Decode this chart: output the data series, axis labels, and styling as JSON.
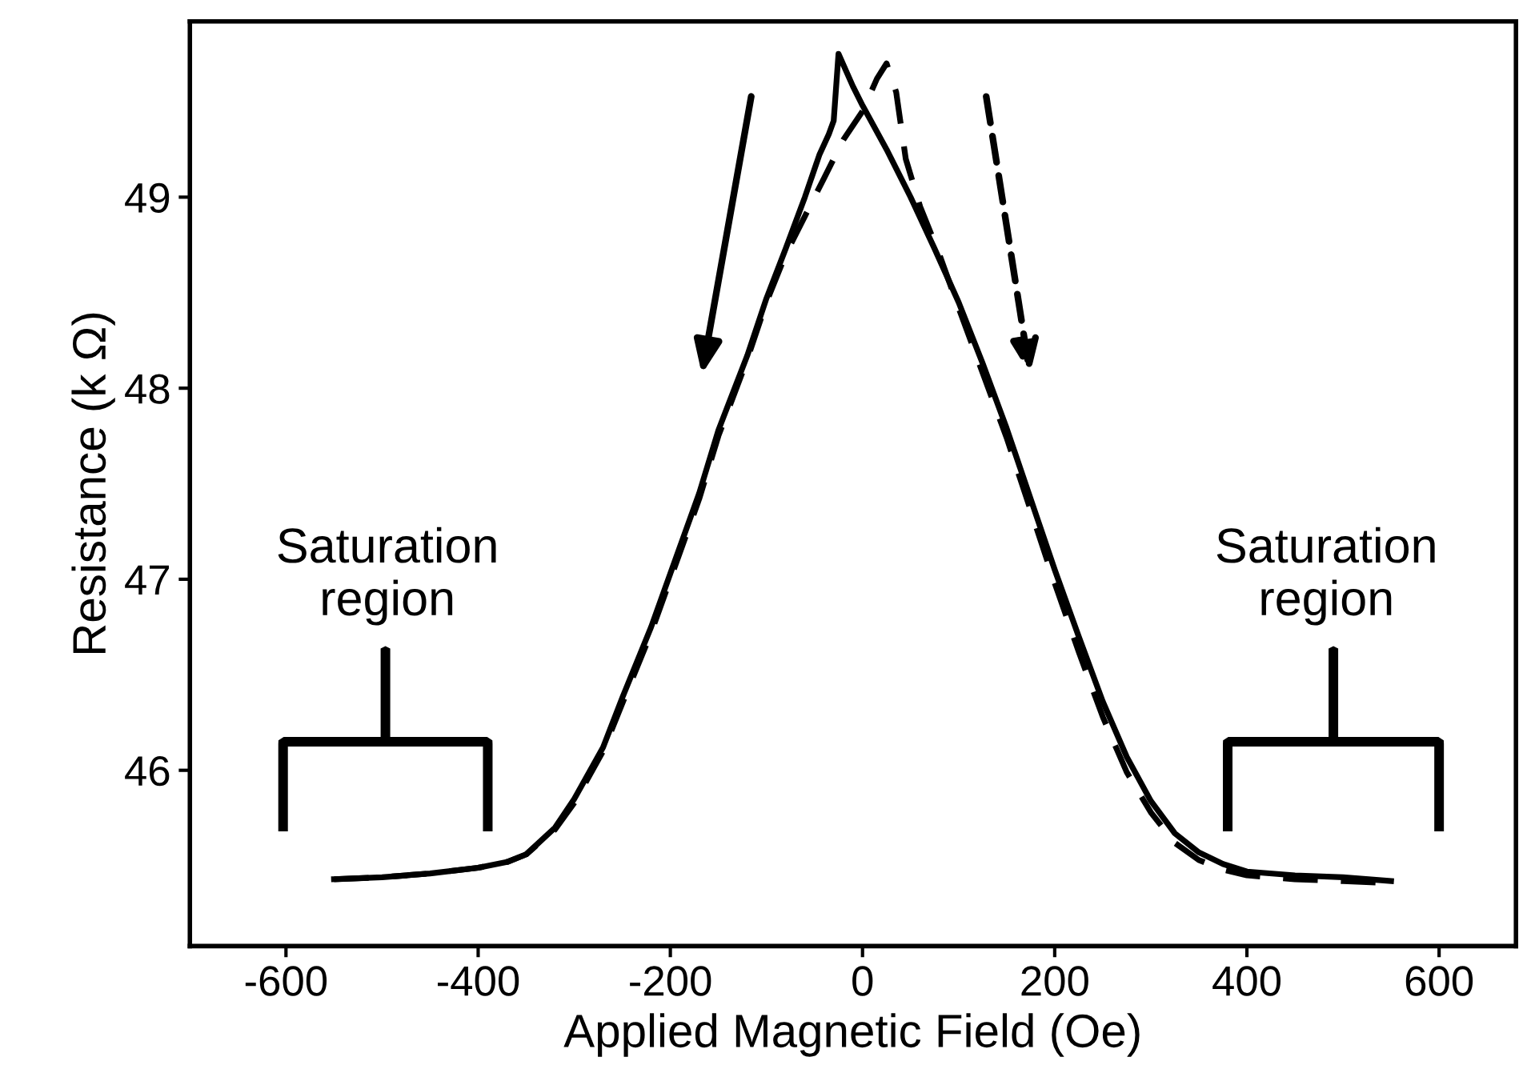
{
  "chart_data": {
    "type": "line",
    "xlabel": "Applied Magnetic Field (Oe)",
    "ylabel": "Resistance (k Ω)",
    "xlim": [
      -700,
      680
    ],
    "ylim": [
      45.08,
      49.92
    ],
    "xticks": [
      -600,
      -400,
      -200,
      0,
      200,
      400,
      600
    ],
    "yticks": [
      46,
      47,
      48,
      49
    ],
    "grid": false,
    "marker": "none",
    "series": [
      {
        "color": "#000000",
        "line_style": "solid",
        "x": [
          -550,
          -500,
          -450,
          -400,
          -370,
          -350,
          -320,
          -300,
          -270,
          -250,
          -220,
          -200,
          -170,
          -150,
          -120,
          -100,
          -80,
          -60,
          -45,
          -35,
          -30,
          -25,
          -10,
          0,
          25,
          50,
          75,
          100,
          125,
          150,
          175,
          200,
          225,
          250,
          275,
          300,
          325,
          350,
          375,
          400,
          450,
          500,
          550
        ],
        "values": [
          45.43,
          45.44,
          45.46,
          45.49,
          45.52,
          45.56,
          45.7,
          45.85,
          46.12,
          46.38,
          46.75,
          47.03,
          47.45,
          47.78,
          48.17,
          48.47,
          48.73,
          49.0,
          49.22,
          49.33,
          49.4,
          49.75,
          49.58,
          49.48,
          49.25,
          49.0,
          48.73,
          48.45,
          48.13,
          47.79,
          47.42,
          47.05,
          46.7,
          46.36,
          46.07,
          45.84,
          45.67,
          45.57,
          45.51,
          45.47,
          45.45,
          45.44,
          45.42
        ]
      },
      {
        "color": "#000000",
        "line_style": "dashed",
        "x": [
          -550,
          -500,
          -450,
          -400,
          -370,
          -350,
          -320,
          -300,
          -270,
          -250,
          -220,
          -200,
          -170,
          -150,
          -120,
          -100,
          -80,
          -60,
          -40,
          -20,
          0,
          15,
          25,
          35,
          45,
          60,
          80,
          100,
          125,
          150,
          175,
          200,
          225,
          250,
          275,
          300,
          325,
          350,
          375,
          400,
          450,
          500,
          550
        ],
        "values": [
          45.43,
          45.44,
          45.46,
          45.49,
          45.52,
          45.56,
          45.69,
          45.83,
          46.1,
          46.35,
          46.72,
          47.0,
          47.42,
          47.75,
          48.15,
          48.45,
          48.7,
          48.9,
          49.1,
          49.3,
          49.45,
          49.62,
          49.7,
          49.55,
          49.2,
          48.95,
          48.7,
          48.42,
          48.08,
          47.74,
          47.36,
          46.98,
          46.62,
          46.28,
          45.99,
          45.78,
          45.62,
          45.53,
          45.48,
          45.45,
          45.43,
          45.42,
          45.41
        ]
      }
    ],
    "annotations": [
      "Saturation\nregion",
      "Saturation\nregion"
    ]
  }
}
